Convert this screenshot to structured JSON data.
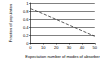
{
  "chart_data": {
    "type": "line",
    "x_label": "Expectation number of modes of absorber",
    "y_label": "Fraction of population",
    "x": [
      0,
      10,
      20,
      30,
      40,
      50
    ],
    "values": [
      0.86,
      0.73,
      0.59,
      0.45,
      0.31,
      0.17
    ],
    "color": "#333333",
    "line_style": "dashed",
    "xlim": [
      0,
      50
    ],
    "xticks": [
      0,
      10,
      20,
      30,
      40,
      50
    ],
    "ylim": [
      0,
      1
    ],
    "yticks": [
      0,
      0.2,
      0.4,
      0.6,
      0.8,
      1
    ],
    "grid": true
  }
}
